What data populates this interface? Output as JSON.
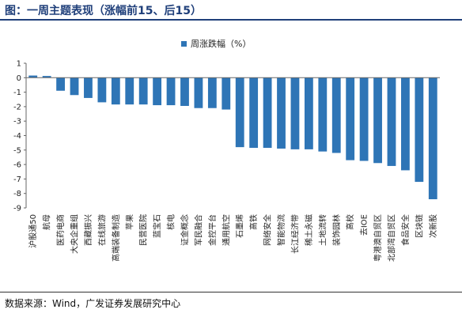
{
  "header": {
    "title": "图：一周主题表现（涨幅前15、后15）"
  },
  "footer": {
    "source": "数据来源：Wind，广发证券发展研究中心"
  },
  "chart_data": {
    "type": "bar",
    "title": "",
    "xlabel": "",
    "ylabel": "",
    "legend": {
      "label": "周涨跌幅（%）",
      "position": "top-center"
    },
    "bar_color": "#2e75b6",
    "ylim": [
      -9,
      1
    ],
    "yticks": [
      1,
      0,
      -1,
      -2,
      -3,
      -4,
      -5,
      -6,
      -7,
      -8,
      -9
    ],
    "grid": false,
    "categories": [
      "沪股通50",
      "航母",
      "医药电商",
      "大央企重组",
      "西藏振兴",
      "在线旅游",
      "高端装备制造",
      "苹果",
      "民营医院",
      "蓝宝石",
      "核电",
      "证金概念",
      "军民融合",
      "金控平台",
      "通用航空",
      "石墨烯",
      "高铁",
      "网络安全",
      "智能物流",
      "长江经济带",
      "稀土永磁",
      "土地流转",
      "装饰园林",
      "高校",
      "去IOE",
      "粤港澳自贸区",
      "北部湾自贸区",
      "食品安全",
      "区块链",
      "次新股"
    ],
    "series": [
      {
        "values": [
          0.15,
          0.12,
          -0.9,
          -1.2,
          -1.4,
          -1.7,
          -1.85,
          -1.85,
          -1.85,
          -1.9,
          -1.9,
          -1.95,
          -2.1,
          -2.1,
          -2.2,
          -4.8,
          -4.85,
          -4.85,
          -4.9,
          -4.95,
          -4.95,
          -5.1,
          -5.2,
          -5.7,
          -5.75,
          -5.9,
          -6.1,
          -6.4,
          -7.2,
          -8.4
        ]
      }
    ]
  }
}
